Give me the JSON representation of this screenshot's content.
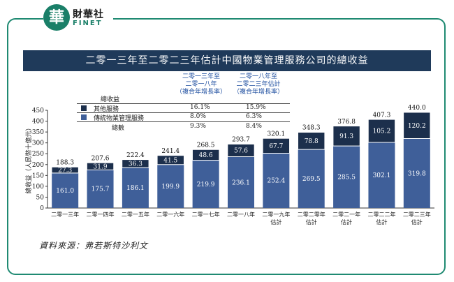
{
  "logo": {
    "mark": "華",
    "name_cn": "財華社",
    "name_en": "FINET"
  },
  "chart_data": {
    "type": "bar",
    "title": "二零一三年至二零二三年估計中國物業管理服務公司的總收益",
    "ylabel": "總收益（人民幣十億元）",
    "ylim": [
      0,
      450
    ],
    "yticks": [
      0,
      50,
      100,
      150,
      200,
      250,
      300,
      350,
      400,
      450
    ],
    "categories": [
      [
        "二零一三年"
      ],
      [
        "二零一四年"
      ],
      [
        "二零一五年"
      ],
      [
        "二零一六年"
      ],
      [
        "二零一七年"
      ],
      [
        "二零一八年"
      ],
      [
        "二零一九年",
        "估計"
      ],
      [
        "二零二零年",
        "估計"
      ],
      [
        "二零二一年",
        "估計"
      ],
      [
        "二零二二年",
        "估計"
      ],
      [
        "二零二三年",
        "估計"
      ]
    ],
    "series": [
      {
        "name": "傳統物業管理服務",
        "color": "#3f5f99",
        "values": [
          161.0,
          175.7,
          186.1,
          199.9,
          219.9,
          236.1,
          252.4,
          269.5,
          285.5,
          302.1,
          319.8
        ],
        "labels": [
          "161.0",
          "175.7",
          "186.1",
          "199.9",
          "219.9",
          "236.1",
          "252.4",
          "269.5",
          "285.5",
          "302.1",
          "319.8"
        ]
      },
      {
        "name": "其他服務",
        "color": "#1c2f4c",
        "values": [
          27.3,
          31.9,
          36.3,
          41.5,
          48.6,
          57.6,
          67.7,
          78.8,
          91.3,
          105.2,
          120.2
        ],
        "labels": [
          "27.3",
          "31.9",
          "36.3",
          "41.5",
          "48.6",
          "57.6",
          "67.7",
          "78.8",
          "91.3",
          "105.2",
          "120.2"
        ]
      }
    ],
    "totals": [
      188.3,
      207.6,
      222.4,
      241.4,
      268.5,
      293.7,
      320.1,
      348.3,
      376.8,
      407.3,
      440.0
    ],
    "total_labels": [
      "188.3",
      "207.6",
      "222.4",
      "241.4",
      "268.5",
      "293.7",
      "320.1",
      "348.3",
      "376.8",
      "407.3",
      "440.0"
    ],
    "growth_table": {
      "row_header": "總收益",
      "columns": [
        [
          "二零一三年至",
          "二零一八年",
          "（複合年增長率）"
        ],
        [
          "二零一八年至",
          "二零二三年估計",
          "（複合年增長率）"
        ]
      ],
      "rows": [
        {
          "label": "其他服務",
          "values": [
            "16.1%",
            "15.9%"
          ]
        },
        {
          "label": "傳統物業管理服務",
          "values": [
            "8.0%",
            "6.3%"
          ]
        },
        {
          "label": "總數",
          "values": [
            "9.3%",
            "8.4%"
          ]
        }
      ]
    }
  },
  "source": "資料來源：弗若斯特沙利文"
}
